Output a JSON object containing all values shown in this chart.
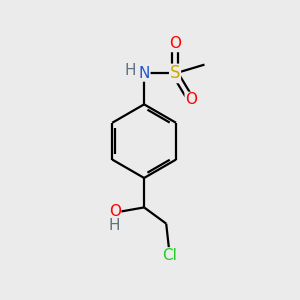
{
  "background_color": "#ebebeb",
  "bond_color": "#000000",
  "atom_colors": {
    "N": "#2255cc",
    "O": "#ff0000",
    "S": "#ccaa00",
    "Cl": "#22cc22",
    "H_N": "#607080",
    "H_O": "#607080",
    "C": "#000000"
  },
  "lw": 1.6,
  "font_size": 11
}
